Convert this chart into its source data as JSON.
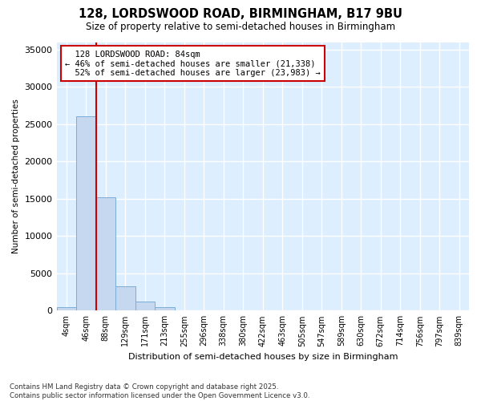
{
  "title_line1": "128, LORDSWOOD ROAD, BIRMINGHAM, B17 9BU",
  "title_line2": "Size of property relative to semi-detached houses in Birmingham",
  "xlabel": "Distribution of semi-detached houses by size in Birmingham",
  "ylabel": "Number of semi-detached properties",
  "categories": [
    "4sqm",
    "46sqm",
    "88sqm",
    "129sqm",
    "171sqm",
    "213sqm",
    "255sqm",
    "296sqm",
    "338sqm",
    "380sqm",
    "422sqm",
    "463sqm",
    "505sqm",
    "547sqm",
    "589sqm",
    "630sqm",
    "672sqm",
    "714sqm",
    "756sqm",
    "797sqm",
    "839sqm"
  ],
  "bar_heights": [
    500,
    26100,
    15200,
    3300,
    1200,
    500,
    0,
    0,
    0,
    0,
    0,
    0,
    0,
    0,
    0,
    0,
    0,
    0,
    0,
    0,
    0
  ],
  "bar_color": "#c5d8f0",
  "bar_edge_color": "#7badd4",
  "plot_bg_color": "#ddeeff",
  "fig_bg_color": "#ffffff",
  "grid_color": "#ffffff",
  "property_line_label": "128 LORDSWOOD ROAD: 84sqm",
  "pct_smaller": 46,
  "n_smaller": 21338,
  "pct_larger": 52,
  "n_larger": 23983,
  "annotation_box_color": "#ffffff",
  "annotation_box_edge": "#cc0000",
  "red_line_color": "#cc0000",
  "ylim": [
    0,
    36000
  ],
  "yticks": [
    0,
    5000,
    10000,
    15000,
    20000,
    25000,
    30000,
    35000
  ],
  "footer": "Contains HM Land Registry data © Crown copyright and database right 2025.\nContains public sector information licensed under the Open Government Licence v3.0.",
  "red_line_xindex": 2
}
